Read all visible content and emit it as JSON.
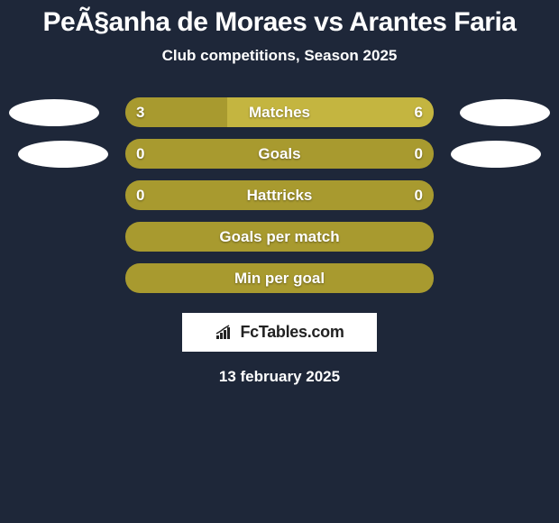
{
  "title": "PeÃ§anha de Moraes vs Arantes Faria",
  "subtitle": "Club competitions, Season 2025",
  "colors": {
    "background": "#1e2739",
    "bar_primary": "#a89a2f",
    "bar_secondary": "#c4b540",
    "text": "#ffffff",
    "ellipse": "#ffffff",
    "brand_bg": "#ffffff",
    "brand_text": "#222222"
  },
  "stats": [
    {
      "label": "Matches",
      "left_value": "3",
      "right_value": "6",
      "left_pct": 33,
      "left_color": "#a89a2f",
      "right_color": "#c4b540",
      "show_values": true,
      "show_left_ellipse": true,
      "show_right_ellipse": true,
      "ellipse_class": "1"
    },
    {
      "label": "Goals",
      "left_value": "0",
      "right_value": "0",
      "left_pct": 100,
      "left_color": "#a89a2f",
      "right_color": "#a89a2f",
      "show_values": true,
      "show_left_ellipse": true,
      "show_right_ellipse": true,
      "ellipse_class": "2"
    },
    {
      "label": "Hattricks",
      "left_value": "0",
      "right_value": "0",
      "left_pct": 100,
      "left_color": "#a89a2f",
      "right_color": "#a89a2f",
      "show_values": true,
      "show_left_ellipse": false,
      "show_right_ellipse": false,
      "ellipse_class": ""
    },
    {
      "label": "Goals per match",
      "left_value": "",
      "right_value": "",
      "left_pct": 100,
      "left_color": "#a89a2f",
      "right_color": "#a89a2f",
      "show_values": false,
      "show_left_ellipse": false,
      "show_right_ellipse": false,
      "ellipse_class": ""
    },
    {
      "label": "Min per goal",
      "left_value": "",
      "right_value": "",
      "left_pct": 100,
      "left_color": "#a89a2f",
      "right_color": "#a89a2f",
      "show_values": false,
      "show_left_ellipse": false,
      "show_right_ellipse": false,
      "ellipse_class": ""
    }
  ],
  "brand": "FcTables.com",
  "date": "13 february 2025"
}
